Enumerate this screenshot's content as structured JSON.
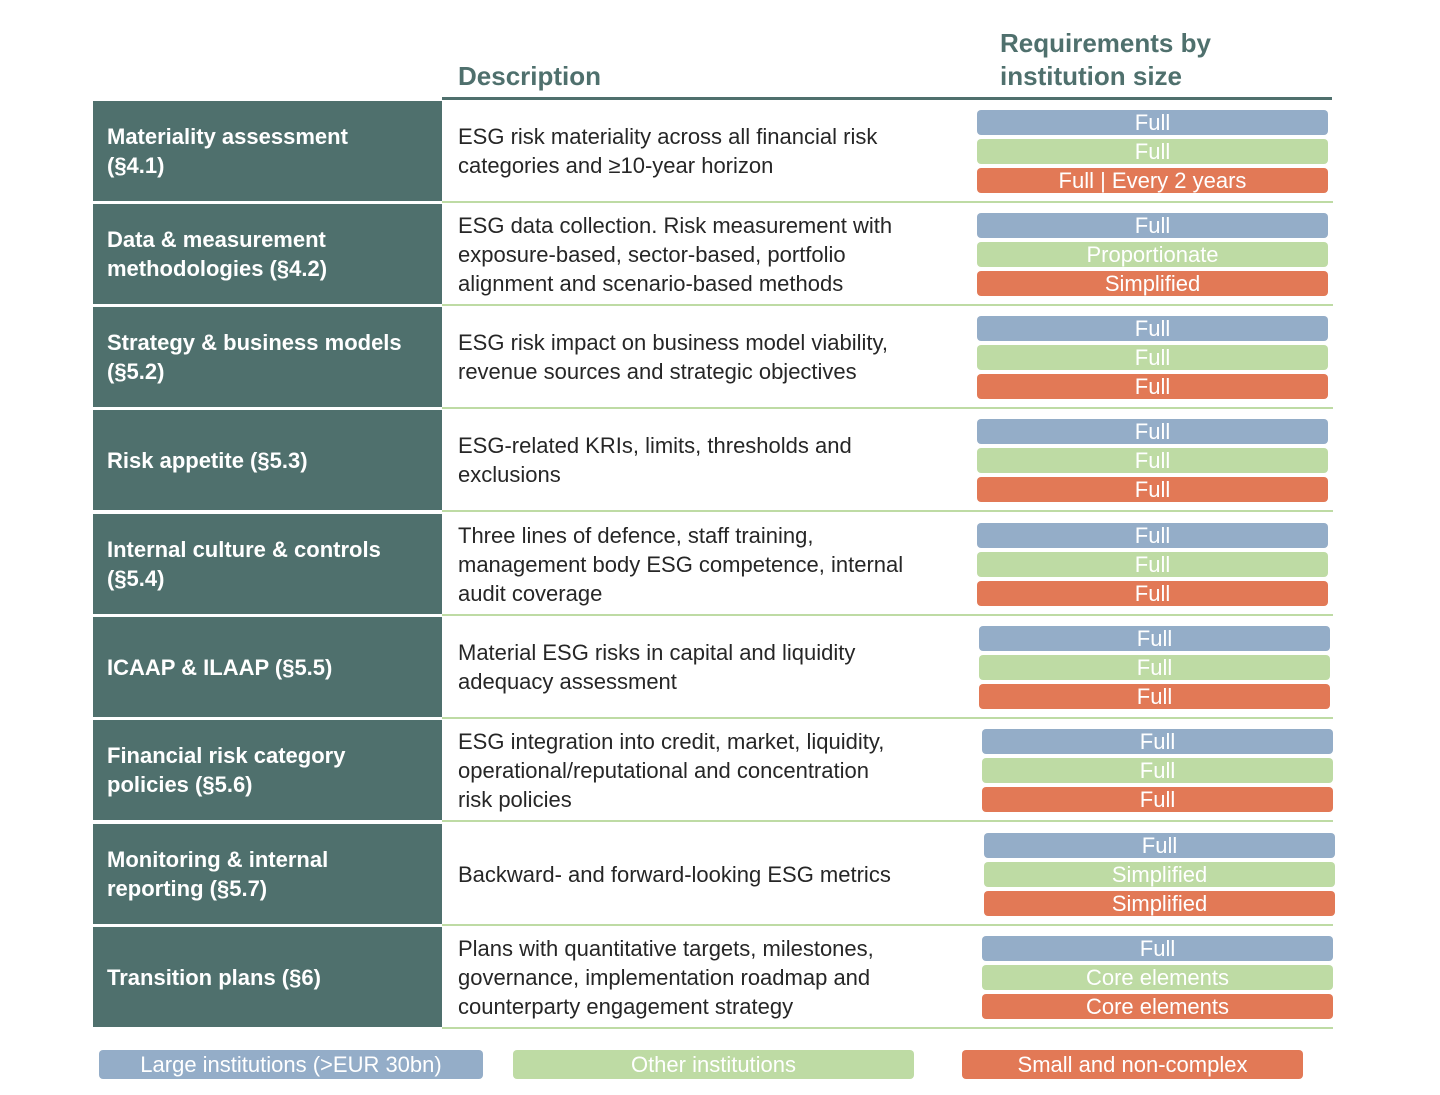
{
  "headers": {
    "description": "Description",
    "requirements": "Requirements by\ninstitution size"
  },
  "colors": {
    "label_bg": "#4f706d",
    "large": "#94adc8",
    "other": "#bedba4",
    "small": "#e27956",
    "separator": "#bedba4"
  },
  "rows": [
    {
      "label": "Materiality assessment\n(§4.1)",
      "description": "ESG risk materiality across all financial risk\ncategories and ≥10-year horizon",
      "large": "Full",
      "other": "Full",
      "small": "Full | Every 2 years"
    },
    {
      "label": "Data & measurement\nmethodologies (§4.2)",
      "description": "ESG data collection. Risk measurement with\nexposure-based, sector-based, portfolio\nalignment and scenario-based methods",
      "large": "Full",
      "other": "Proportionate",
      "small": "Simplified"
    },
    {
      "label": "Strategy & business models\n(§5.2)",
      "description": "ESG risk impact on business model viability,\nrevenue sources and strategic objectives",
      "large": "Full",
      "other": "Full",
      "small": "Full"
    },
    {
      "label": "Risk appetite (§5.3)",
      "description": "ESG-related KRIs, limits, thresholds and\nexclusions",
      "large": "Full",
      "other": "Full",
      "small": "Full"
    },
    {
      "label": "Internal culture & controls\n(§5.4)",
      "description": "Three lines of defence, staff training,\nmanagement body ESG competence, internal\naudit coverage",
      "large": "Full",
      "other": "Full",
      "small": "Full"
    },
    {
      "label": "ICAAP & ILAAP (§5.5)",
      "description": "Material ESG risks in capital and liquidity\nadequacy assessment",
      "large": "Full",
      "other": "Full",
      "small": "Full"
    },
    {
      "label": "Financial risk category\npolicies (§5.6)",
      "description": "ESG integration into credit, market, liquidity,\noperational/reputational and concentration\nrisk policies",
      "large": "Full",
      "other": "Full",
      "small": "Full"
    },
    {
      "label": "Monitoring & internal\nreporting (§5.7)",
      "description": "Backward- and forward-looking ESG metrics",
      "large": "Full",
      "other": "Simplified",
      "small": "Simplified"
    },
    {
      "label": "Transition plans (§6)",
      "description": "Plans with quantitative targets, milestones,\ngovernance, implementation roadmap and\ncounterparty engagement strategy",
      "large": "Full",
      "other": "Core elements",
      "small": "Core elements"
    }
  ],
  "legend": {
    "large": "Large institutions (>EUR 30bn)",
    "other": "Other institutions",
    "small": "Small and non-complex"
  }
}
